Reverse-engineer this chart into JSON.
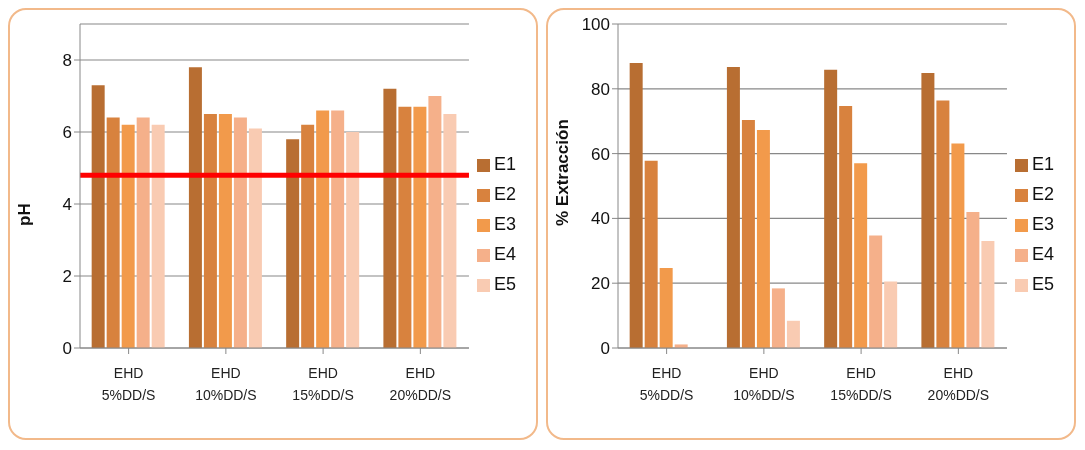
{
  "chart_data": [
    {
      "type": "bar",
      "ylabel": "pH",
      "categories": [
        "EHD 5%DD/S",
        "EHD 10%DD/S",
        "EHD 15%DD/S",
        "EHD 20%DD/S"
      ],
      "series": [
        {
          "name": "E1",
          "color": "#b86e32",
          "values": [
            7.3,
            7.8,
            5.8,
            7.2
          ]
        },
        {
          "name": "E2",
          "color": "#d8823e",
          "values": [
            6.4,
            6.5,
            6.2,
            6.7
          ]
        },
        {
          "name": "E3",
          "color": "#f29a4b",
          "values": [
            6.2,
            6.5,
            6.6,
            6.7
          ]
        },
        {
          "name": "E4",
          "color": "#f5b08a",
          "values": [
            6.4,
            6.4,
            6.6,
            7.0
          ]
        },
        {
          "name": "E5",
          "color": "#f9cbb2",
          "values": [
            6.2,
            6.1,
            6.0,
            6.5
          ]
        }
      ],
      "ylim": [
        0,
        9
      ],
      "yticks": [
        0,
        2,
        4,
        6,
        8
      ],
      "grid": "y",
      "legend": "right",
      "ref_lines": [
        {
          "axis": "y",
          "value": 4.8,
          "color": "#ff0000"
        }
      ]
    },
    {
      "type": "bar",
      "ylabel": "% Extracción",
      "categories": [
        "EHD 5%DD/S",
        "EHD 10%DD/S",
        "EHD 15%DD/S",
        "EHD 20%DD/S"
      ],
      "series": [
        {
          "name": "E1",
          "color": "#b86e32",
          "values": [
            88,
            86.7,
            85.9,
            84.9
          ]
        },
        {
          "name": "E2",
          "color": "#d8823e",
          "values": [
            57.8,
            70.4,
            74.7,
            76.4
          ]
        },
        {
          "name": "E3",
          "color": "#f29a4b",
          "values": [
            24.7,
            67.3,
            57,
            63.1
          ]
        },
        {
          "name": "E4",
          "color": "#f5b08a",
          "values": [
            1.1,
            18.4,
            34.7,
            42
          ]
        },
        {
          "name": "E5",
          "color": "#f9cbb2",
          "values": [
            0,
            8.4,
            20.5,
            33
          ]
        }
      ],
      "ylim": [
        0,
        100
      ],
      "yticks": [
        0,
        20,
        40,
        60,
        80,
        100
      ],
      "grid": "y",
      "legend": "right"
    }
  ]
}
